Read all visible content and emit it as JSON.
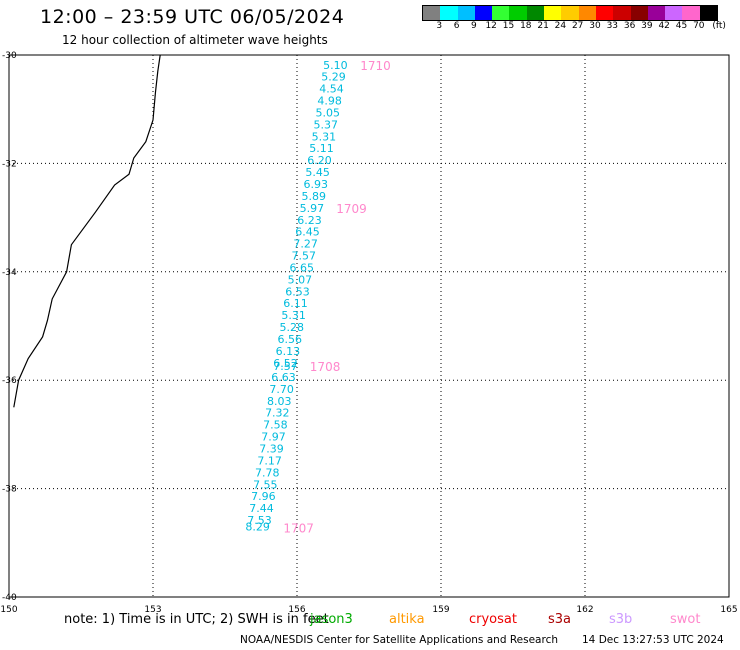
{
  "header": {
    "title": "12:00 – 23:59 UTC 06/05/2024",
    "subtitle": "12 hour collection of altimeter wave heights"
  },
  "colorbar": {
    "colors": [
      "#808080",
      "#00ffff",
      "#00bfff",
      "#0000ff",
      "#33ff33",
      "#00cc00",
      "#008800",
      "#ffff00",
      "#ffcc00",
      "#ff8800",
      "#ff0000",
      "#cc0000",
      "#880000",
      "#990099",
      "#cc66ff",
      "#ff66cc",
      "#000000"
    ],
    "labels": [
      "3",
      "6",
      "9",
      "12",
      "15",
      "18",
      "21",
      "24",
      "27",
      "30",
      "33",
      "36",
      "39",
      "42",
      "45",
      "70",
      "(ft)"
    ]
  },
  "map_data": {
    "lon_range": [
      150,
      165
    ],
    "lat_range": [
      -30,
      -40
    ],
    "lon_labels": [
      "150",
      "153",
      "156",
      "159",
      "162",
      "165"
    ],
    "lat_labels": [
      "-30",
      "-32",
      "-34",
      "-36",
      "-38",
      "-40"
    ],
    "swh_color": "#00bbdd",
    "time_color": "#ff88cc",
    "swh_points": [
      {
        "lon": 156.8,
        "lat": -30.18,
        "v": "5.10"
      },
      {
        "lon": 156.76,
        "lat": -30.4,
        "v": "5.29"
      },
      {
        "lon": 156.72,
        "lat": -30.62,
        "v": "4.54"
      },
      {
        "lon": 156.68,
        "lat": -30.84,
        "v": "4.98"
      },
      {
        "lon": 156.64,
        "lat": -31.06,
        "v": "5.05"
      },
      {
        "lon": 156.6,
        "lat": -31.28,
        "v": "5.37"
      },
      {
        "lon": 156.56,
        "lat": -31.5,
        "v": "5.31"
      },
      {
        "lon": 156.51,
        "lat": -31.72,
        "v": "5.11"
      },
      {
        "lon": 156.47,
        "lat": -31.94,
        "v": "6.20"
      },
      {
        "lon": 156.43,
        "lat": -32.16,
        "v": "5.45"
      },
      {
        "lon": 156.39,
        "lat": -32.38,
        "v": "6.93"
      },
      {
        "lon": 156.35,
        "lat": -32.6,
        "v": "5.89"
      },
      {
        "lon": 156.31,
        "lat": -32.82,
        "v": "5.97"
      },
      {
        "lon": 156.26,
        "lat": -33.04,
        "v": "6.23"
      },
      {
        "lon": 156.22,
        "lat": -33.26,
        "v": "6.45"
      },
      {
        "lon": 156.18,
        "lat": -33.48,
        "v": "7.27"
      },
      {
        "lon": 156.14,
        "lat": -33.7,
        "v": "7.57"
      },
      {
        "lon": 156.1,
        "lat": -33.92,
        "v": "6.65"
      },
      {
        "lon": 156.06,
        "lat": -34.14,
        "v": "5.07"
      },
      {
        "lon": 156.01,
        "lat": -34.36,
        "v": "6.53"
      },
      {
        "lon": 155.97,
        "lat": -34.58,
        "v": "6.11"
      },
      {
        "lon": 155.93,
        "lat": -34.8,
        "v": "5.31"
      },
      {
        "lon": 155.89,
        "lat": -35.02,
        "v": "5.28"
      },
      {
        "lon": 155.85,
        "lat": -35.24,
        "v": "6.56"
      },
      {
        "lon": 155.81,
        "lat": -35.46,
        "v": "6.13"
      },
      {
        "lon": 155.76,
        "lat": -35.68,
        "v": "6.52"
      },
      {
        "lon": 155.76,
        "lat": -35.74,
        "v": "7.57"
      },
      {
        "lon": 155.72,
        "lat": -35.94,
        "v": "6.63"
      },
      {
        "lon": 155.68,
        "lat": -36.16,
        "v": "7.70"
      },
      {
        "lon": 155.63,
        "lat": -36.38,
        "v": "8.03"
      },
      {
        "lon": 155.59,
        "lat": -36.6,
        "v": "7.32"
      },
      {
        "lon": 155.55,
        "lat": -36.82,
        "v": "7.58"
      },
      {
        "lon": 155.51,
        "lat": -37.04,
        "v": "7.97"
      },
      {
        "lon": 155.47,
        "lat": -37.26,
        "v": "7.39"
      },
      {
        "lon": 155.43,
        "lat": -37.48,
        "v": "7.17"
      },
      {
        "lon": 155.38,
        "lat": -37.7,
        "v": "7.78"
      },
      {
        "lon": 155.34,
        "lat": -37.92,
        "v": "7.55"
      },
      {
        "lon": 155.3,
        "lat": -38.14,
        "v": "7.96"
      },
      {
        "lon": 155.26,
        "lat": -38.36,
        "v": "7.44"
      },
      {
        "lon": 155.22,
        "lat": -38.58,
        "v": "7.53"
      },
      {
        "lon": 155.18,
        "lat": -38.7,
        "v": "8.29"
      }
    ],
    "time_labels": [
      {
        "lon": 156.9,
        "lat": -30.18,
        "t": "1710"
      },
      {
        "lon": 156.4,
        "lat": -32.82,
        "t": "1709"
      },
      {
        "lon": 155.85,
        "lat": -35.74,
        "t": "1708"
      },
      {
        "lon": 155.3,
        "lat": -38.72,
        "t": "1707"
      }
    ],
    "coastline": [
      [
        153.15,
        -30.0
      ],
      [
        153.1,
        -30.3
      ],
      [
        153.05,
        -30.7
      ],
      [
        153.0,
        -31.2
      ],
      [
        152.85,
        -31.6
      ],
      [
        152.6,
        -31.9
      ],
      [
        152.5,
        -32.2
      ],
      [
        152.2,
        -32.4
      ],
      [
        151.8,
        -32.9
      ],
      [
        151.3,
        -33.5
      ],
      [
        151.2,
        -34.0
      ],
      [
        150.9,
        -34.5
      ],
      [
        150.8,
        -34.9
      ],
      [
        150.7,
        -35.2
      ],
      [
        150.4,
        -35.6
      ],
      [
        150.2,
        -36.0
      ],
      [
        150.1,
        -36.5
      ]
    ]
  },
  "footer": {
    "note": "note:  1) Time is in UTC; 2) SWH is in feet",
    "satellites": [
      {
        "name": "jason3",
        "color": "#00aa00"
      },
      {
        "name": "altika",
        "color": "#ff9900"
      },
      {
        "name": "cryosat",
        "color": "#ee0000"
      },
      {
        "name": "s3a",
        "color": "#aa0000"
      },
      {
        "name": "s3b",
        "color": "#cc99ff"
      },
      {
        "name": "swot",
        "color": "#ff88cc"
      }
    ],
    "credit": "NOAA/NESDIS Center for Satellite Applications and Research",
    "timestamp": "14 Dec 13:27:53 UTC 2024"
  }
}
